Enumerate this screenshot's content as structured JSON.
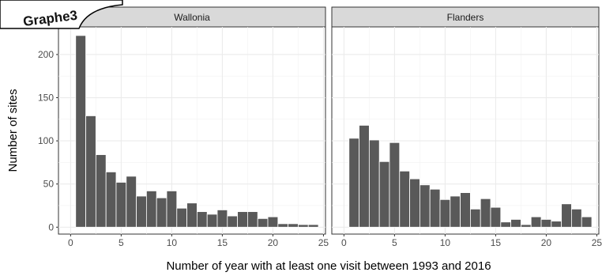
{
  "badge": {
    "text": "Graphe3"
  },
  "chart_data": {
    "type": "bar",
    "xlabel": "Number of year with at least one visit between 1993 and 2016",
    "ylabel": "Number of sites",
    "xlim": [
      -1.2,
      25.2
    ],
    "ylim": [
      -8,
      232
    ],
    "x_ticks": [
      0,
      5,
      10,
      15,
      20,
      25
    ],
    "y_ticks": [
      0,
      50,
      100,
      150,
      200
    ],
    "grid": true,
    "bar_color": "#595959",
    "strip_color": "#d9d9d9",
    "panels": [
      {
        "name": "Wallonia",
        "x": [
          1,
          2,
          3,
          4,
          5,
          6,
          7,
          8,
          9,
          10,
          11,
          12,
          13,
          14,
          15,
          16,
          17,
          18,
          19,
          20,
          21,
          22,
          23,
          24
        ],
        "values": [
          222,
          129,
          84,
          64,
          52,
          59,
          36,
          42,
          34,
          42,
          22,
          28,
          18,
          15,
          20,
          13,
          18,
          18,
          10,
          12,
          4,
          4,
          3,
          3
        ]
      },
      {
        "name": "Flanders",
        "x": [
          1,
          2,
          3,
          4,
          5,
          6,
          7,
          8,
          9,
          10,
          11,
          12,
          13,
          14,
          15,
          16,
          17,
          18,
          19,
          20,
          21,
          22,
          23,
          24
        ],
        "values": [
          103,
          118,
          101,
          76,
          98,
          65,
          56,
          49,
          44,
          32,
          36,
          40,
          21,
          33,
          23,
          6,
          9,
          3,
          12,
          9,
          7,
          27,
          21,
          12
        ]
      }
    ]
  }
}
